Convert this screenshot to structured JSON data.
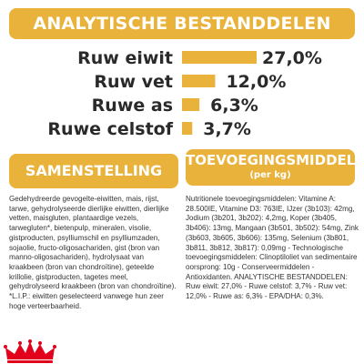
{
  "header": {
    "title": "ANALYTISCHE BESTANDDELEN"
  },
  "chart_data": {
    "type": "bar",
    "categories": [
      "Ruw eiwit",
      "Ruw vet",
      "Ruwe as",
      "Ruwe celstof"
    ],
    "values": [
      27.0,
      12.0,
      6.3,
      3.7
    ],
    "value_labels": [
      "27,0%",
      "12,0%",
      "6,3%",
      "3,7%"
    ],
    "orientation": "horizontal",
    "title": "ANALYTISCHE BESTANDDELEN",
    "xlabel": "",
    "ylabel": "",
    "xlim": [
      0,
      27.0
    ],
    "grid": false,
    "legend": "none",
    "bar_color": "#e9b23a"
  },
  "composition": {
    "title": "SAMENSTELLING",
    "text": "Gedehydreerde gevogelte-eiwitten, mais, rijst, tarwe, gehydrolyseerde dierlijke eiwitten, dierlijke vetten, maisgluten, plantaardige vezels, tarwegluten*, bietenpulp, mineralen, visolie, gistproducten, psylliumschil en psylliumzaden, sojaolie, fructo-oligosachariden, gist (bron van manno-oligosachariden), hydrolysaat van kraakbeen (bron van chondroïtine), geteelde krillolie, gistproducten, tagetes meel, gehydrolyseerd kraakbeen (bron van chondroïtine). *L.I.P.: eiwitten geselecteerd vanwege hun zeer hoge verteerbaarheid."
  },
  "additives": {
    "title": "TOEVOEGINGSMIDDELEN",
    "subtitle": "(per kg)",
    "text": "Nutritionele toevoegingsmiddelen: Vitamine A: 28.500IE, Vitamine D3: 763IE, IJzer (3b103): 42mg, Jodium (3b201, 3b202): 4,2mg, Koper (3b405, 3b406): 13mg, Mangaan (3b501, 3b502): 54mg, Zink (3b603, 3b605, 3b606): 135mg, Selenium (3b801, 3b811, 3b812, 3b817): 0,09mg - Technologische toevoegingsmiddelen: Clinoptiloliet van sedimentaire oorsprong: 10g - Conserveermiddelen - Antioxidanten. ANALYTISCHE BESTANDDELEN: Ruw eiwit: 27,0% - Ruwe celstof: 3,7% - Ruw vet: 12,0% - Ruwe as: 6,3% - EPA/DHA: 0,3%."
  },
  "logo": {
    "name": "royal-canin-crown-logo",
    "color": "#e2001a"
  }
}
